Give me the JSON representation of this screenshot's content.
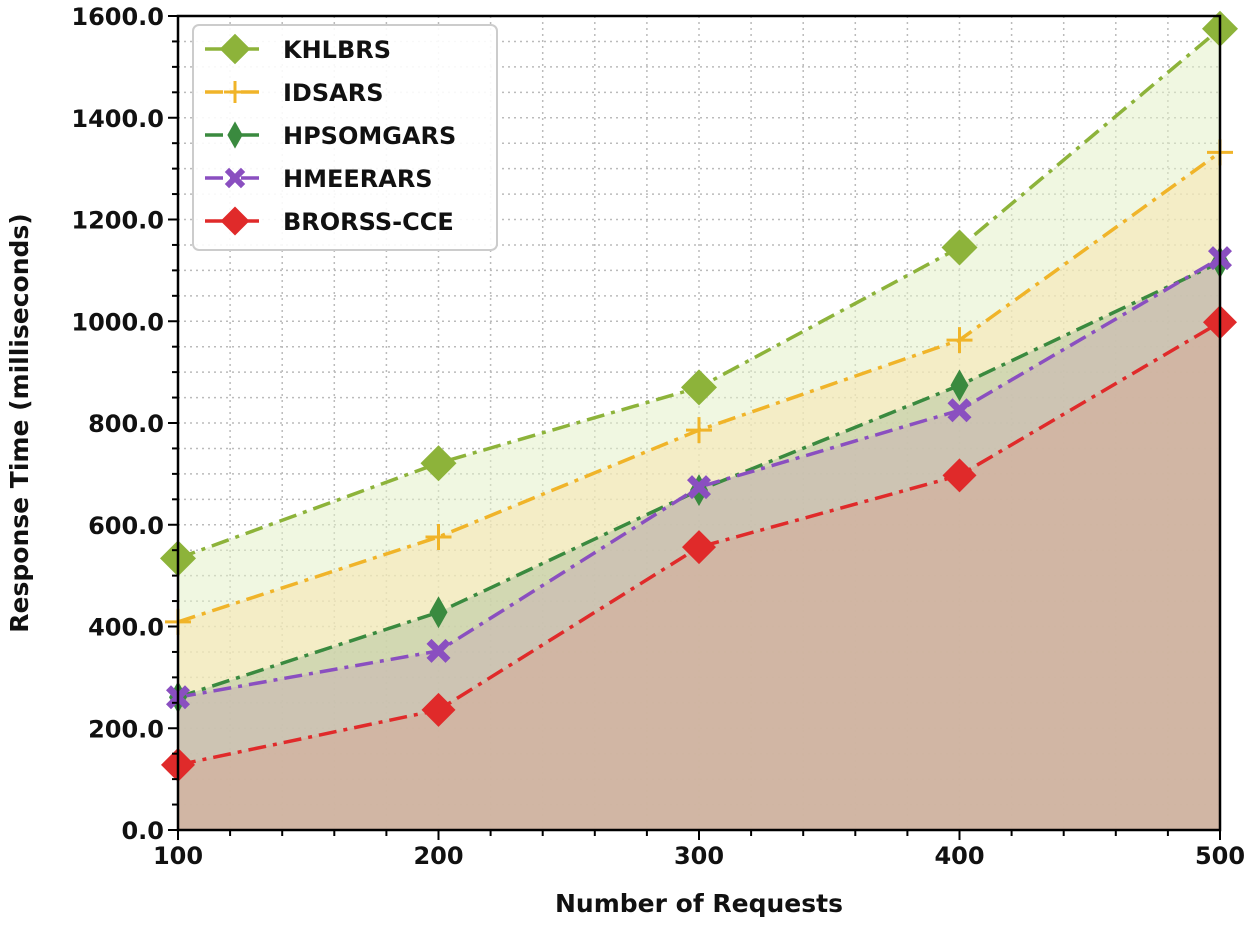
{
  "chart_data": {
    "type": "area",
    "title": "",
    "xlabel": "Number of Requests",
    "ylabel": "Response Time (milliseconds)",
    "x": [
      100,
      200,
      300,
      400,
      500
    ],
    "xlim": [
      100,
      500
    ],
    "ylim": [
      0,
      1600
    ],
    "xticks": [
      "100",
      "200",
      "300",
      "400",
      "500"
    ],
    "yticks": [
      "0.0",
      "200.0",
      "400.0",
      "600.0",
      "800.0",
      "1000.0",
      "1200.0",
      "1400.0",
      "1600.0"
    ],
    "grid": true,
    "legend_position": "top-left",
    "series": [
      {
        "name": "KHLBRS",
        "values": [
          534,
          721,
          870,
          1145,
          1575
        ],
        "color": "#8db33a",
        "fill": "#e4f0c8",
        "marker": "diamond-large",
        "line": "dashdot"
      },
      {
        "name": "IDSARS",
        "values": [
          409,
          576,
          786,
          963,
          1332
        ],
        "color": "#f0b429",
        "fill": "#f8e6b0",
        "marker": "plus",
        "line": "dashdot"
      },
      {
        "name": "HPSOMGARS",
        "values": [
          261,
          428,
          668,
          874,
          1116
        ],
        "color": "#3a8a3f",
        "fill": "#b7c7a3",
        "marker": "thin-diamond",
        "line": "dashdot"
      },
      {
        "name": "HMEERARS",
        "values": [
          261,
          352,
          674,
          825,
          1124
        ],
        "color": "#8a4fc0",
        "fill": "#c9b4b4",
        "marker": "x-filled",
        "line": "dashdot"
      },
      {
        "name": "BRORSS-CCE",
        "values": [
          128,
          236,
          556,
          697,
          998
        ],
        "color": "#e02a2a",
        "fill": "#d6ab98",
        "marker": "diamond",
        "line": "dashdot"
      }
    ]
  }
}
